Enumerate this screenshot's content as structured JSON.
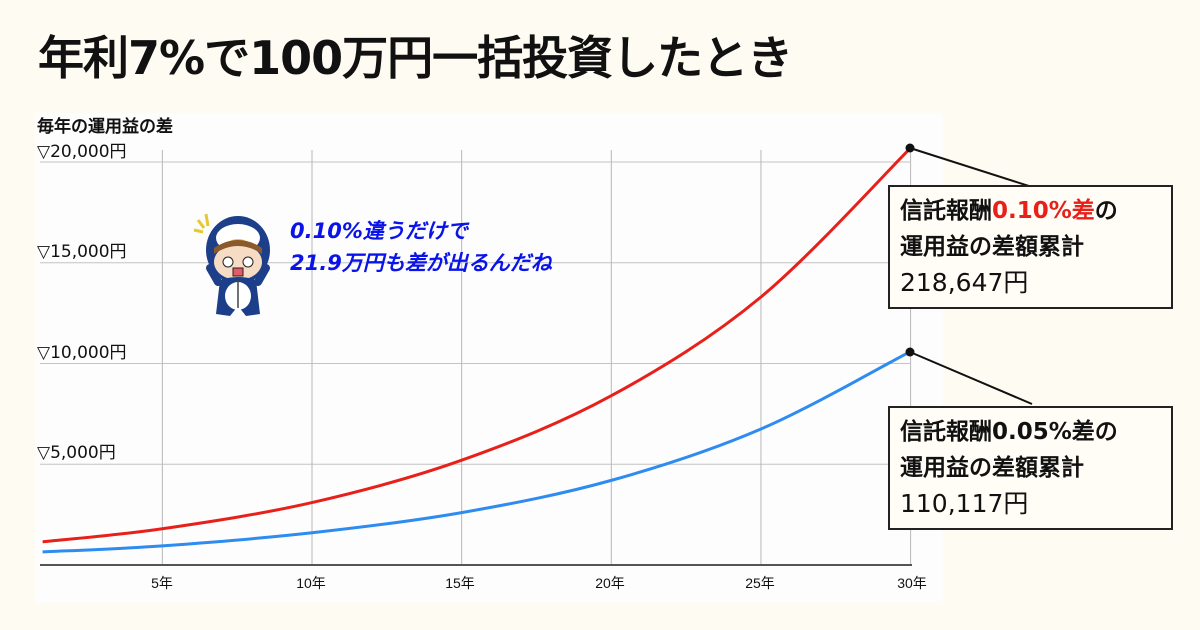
{
  "title": "年利7%で100万円一括投資したとき",
  "speech": {
    "line1": "0.10%違うだけで",
    "line2": "21.9万円も差が出るんだね",
    "color": "#0a14e8"
  },
  "callouts": [
    {
      "prefix": "信託報酬",
      "accent": "0.10%差",
      "suffix": "の",
      "line2": "運用益の差額累計",
      "value": "218,647円",
      "accent_color": "#e8201a"
    },
    {
      "prefix": "信託報酬",
      "accent": "0.05%差",
      "suffix": "の",
      "line2": "運用益の差額累計",
      "value": "110,117円",
      "accent_color": "#111111"
    }
  ],
  "mascot": {
    "icon": "penguin-hood-character-icon"
  },
  "chart_data": {
    "type": "line",
    "title": "年利7%で100万円一括投資したとき",
    "ylabel": "毎年の運用益の差",
    "xlabel": "",
    "ylim": [
      0,
      20000
    ],
    "y_ticks": [
      "▽5,000円",
      "▽10,000円",
      "▽15,000円",
      "▽20,000円"
    ],
    "y_tick_values": [
      5000,
      10000,
      15000,
      20000
    ],
    "x_ticks": [
      "5年",
      "10年",
      "15年",
      "20年",
      "25年",
      "30年"
    ],
    "x_tick_values": [
      5,
      10,
      15,
      20,
      25,
      30
    ],
    "grid": true,
    "x": [
      1,
      5,
      10,
      15,
      20,
      25,
      30
    ],
    "series": [
      {
        "name": "信託報酬0.10%差",
        "color": "#e8201a",
        "values": [
          1150,
          1800,
          3100,
          5200,
          8400,
          13300,
          20700
        ],
        "cumulative_total": "218,647円"
      },
      {
        "name": "信託報酬0.05%差",
        "color": "#2e8cf0",
        "values": [
          650,
          950,
          1600,
          2600,
          4200,
          6750,
          10600
        ],
        "cumulative_total": "110,117円"
      }
    ]
  }
}
